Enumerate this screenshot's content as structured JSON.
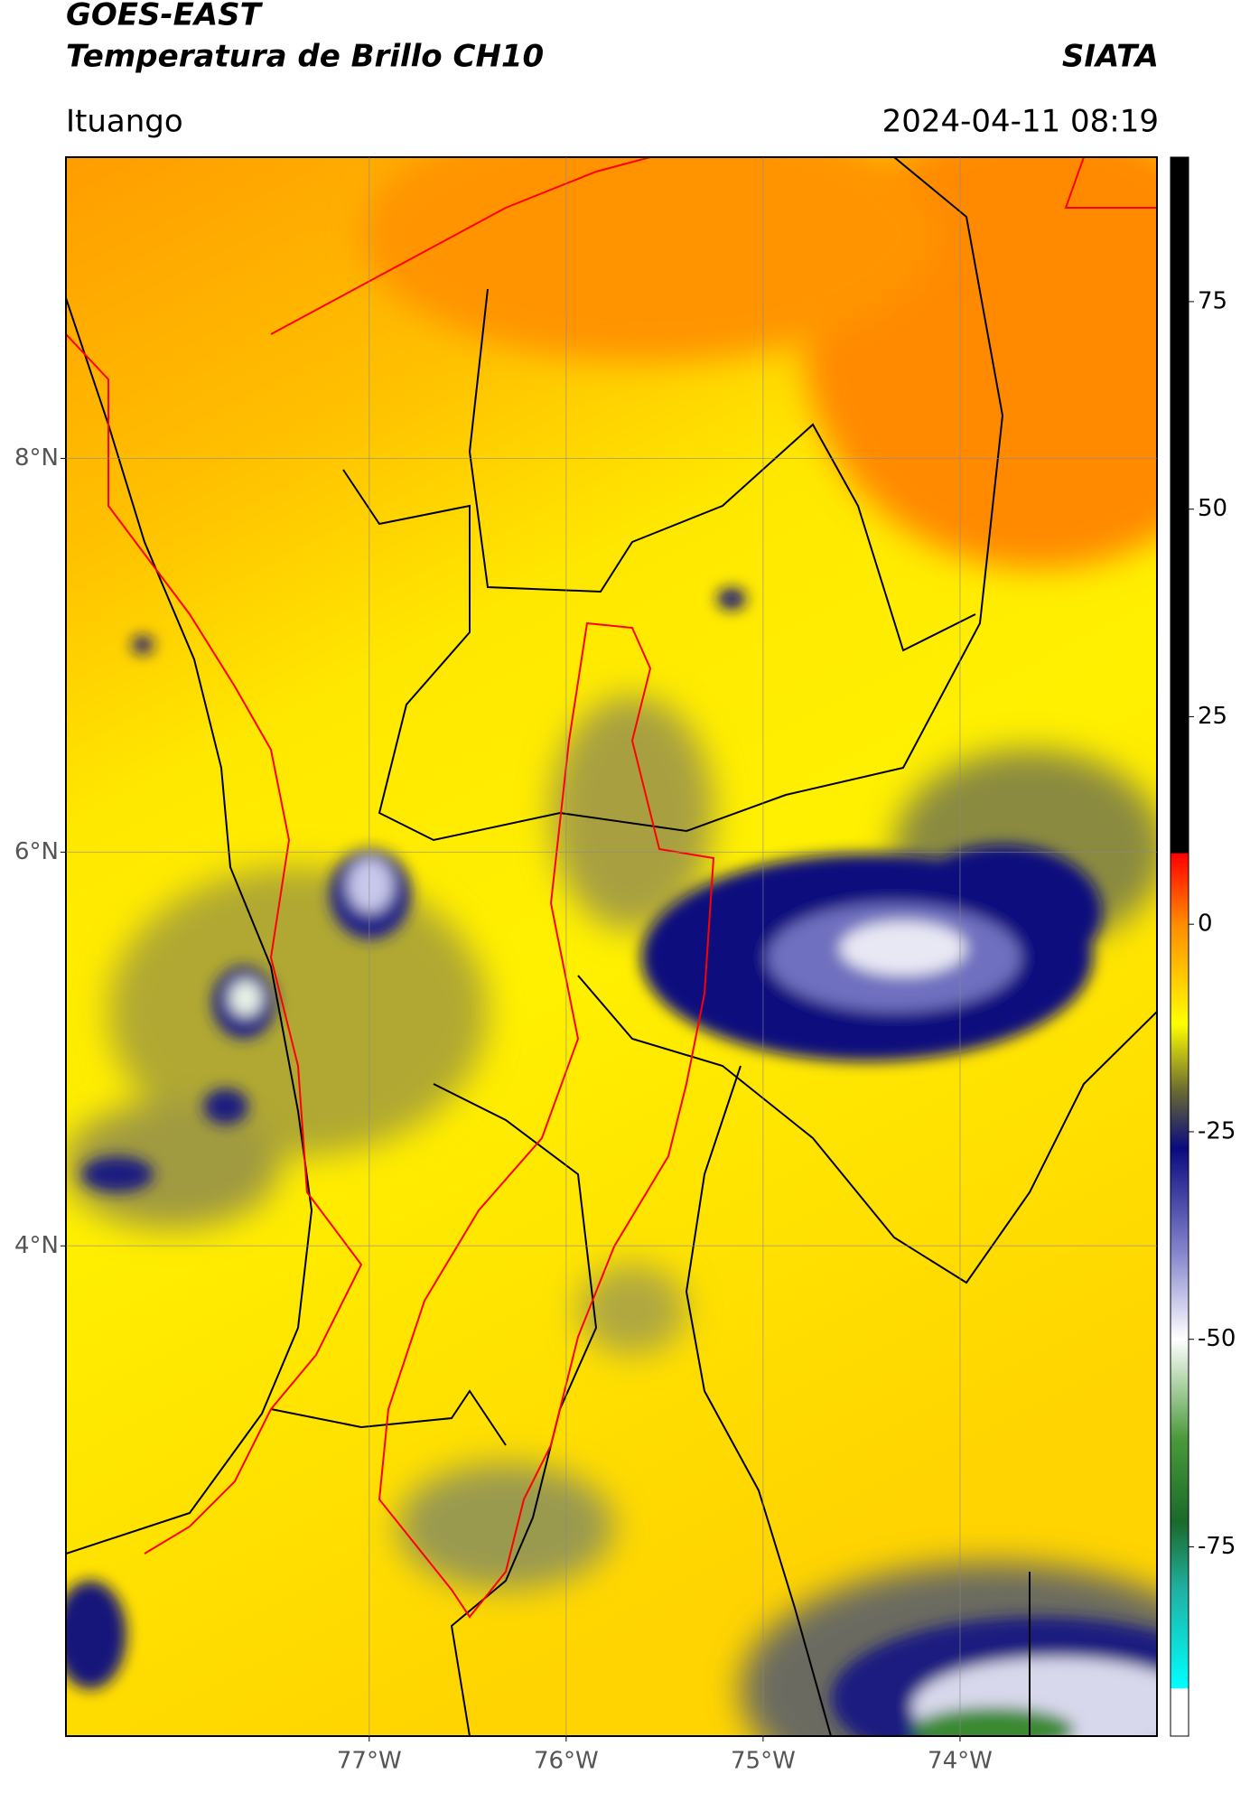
{
  "chart_data": {
    "type": "map",
    "title": "GOES-EAST",
    "subtitle": "Temperatura de Brillo CH10",
    "source": "SIATA",
    "location": "Ituango",
    "datetime": "2024-04-11 08:19",
    "xlim": [
      -78.54,
      -73.0
    ],
    "ylim": [
      1.51,
      9.53
    ],
    "xticks": [
      {
        "value": -77,
        "label": "77°W"
      },
      {
        "value": -76,
        "label": "76°W"
      },
      {
        "value": -75,
        "label": "75°W"
      },
      {
        "value": -74,
        "label": "74°W"
      }
    ],
    "yticks": [
      {
        "value": 8,
        "label": "8°N"
      },
      {
        "value": 6,
        "label": "6°N"
      },
      {
        "value": 4,
        "label": "4°N"
      }
    ],
    "grid": true,
    "colorbar": {
      "lim": [
        -97.8,
        92.4
      ],
      "ticks": [
        75,
        50,
        25,
        0,
        -25,
        -50,
        -75
      ],
      "stops": [
        {
          "value": 92.4,
          "color": "#000000"
        },
        {
          "value": 8.6,
          "color": "#000000"
        },
        {
          "value": 8.5,
          "color": "#ff0000"
        },
        {
          "value": 0,
          "color": "#ff8c00"
        },
        {
          "value": -12,
          "color": "#ffff00"
        },
        {
          "value": -20,
          "color": "#6b6b30"
        },
        {
          "value": -27,
          "color": "#0a0a80"
        },
        {
          "value": -40,
          "color": "#8a8ad0"
        },
        {
          "value": -50,
          "color": "#ffffff"
        },
        {
          "value": -62,
          "color": "#4a9a3a"
        },
        {
          "value": -72,
          "color": "#1a6a2a"
        },
        {
          "value": -80,
          "color": "#20b0a0"
        },
        {
          "value": -92,
          "color": "#00ffff"
        },
        {
          "value": -92.1,
          "color": "#ffffff"
        },
        {
          "value": -97.8,
          "color": "#ffffff"
        }
      ]
    }
  }
}
